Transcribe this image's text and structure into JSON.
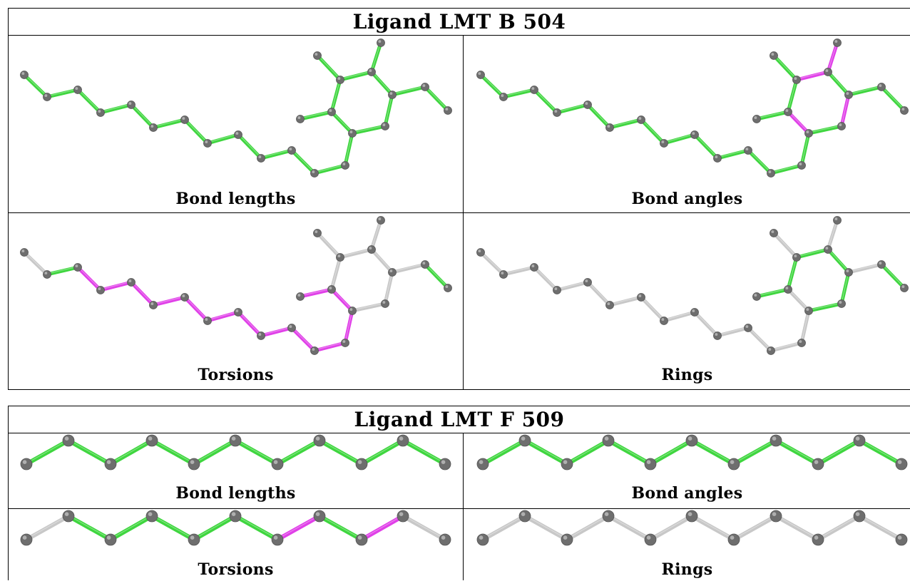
{
  "tables": [
    {
      "title": "Ligand LMT B 504",
      "panels": [
        {
          "caption": "Bond lengths"
        },
        {
          "caption": "Bond angles"
        },
        {
          "caption": "Torsions"
        },
        {
          "caption": "Rings"
        }
      ]
    },
    {
      "title": "Ligand LMT F 509",
      "panels": [
        {
          "caption": "Bond lengths"
        },
        {
          "caption": "Bond angles"
        },
        {
          "caption": "Torsions"
        },
        {
          "caption": "Rings"
        }
      ]
    }
  ],
  "colors": {
    "outlier": "#e040e8",
    "ok": "#3fd63f",
    "not_applicable": "#c8c8c8",
    "atom": "#6e6e6e"
  },
  "molecules": {
    "lmt_b_504": {
      "panel_bonds": {
        "bond_lengths": [
          "ok",
          "ok",
          "ok",
          "ok",
          "ok",
          "ok",
          "ok",
          "ok",
          "ok",
          "ok",
          "ok",
          "ok",
          "ok",
          "ok",
          "ok",
          "ok",
          "ok",
          "ok",
          "ok",
          "ok",
          "ok",
          "ok",
          "ok"
        ],
        "bond_angles": [
          "ok",
          "ok",
          "ok",
          "ok",
          "ok",
          "ok",
          "ok",
          "ok",
          "ok",
          "ok",
          "ok",
          "ok",
          "ok",
          "outlier",
          "ok",
          "outlier",
          "ok",
          "outlier",
          "ok",
          "ok",
          "ok",
          "outlier",
          "ok"
        ],
        "torsions": [
          "not_applicable",
          "ok",
          "outlier",
          "outlier",
          "outlier",
          "outlier",
          "outlier",
          "outlier",
          "outlier",
          "outlier",
          "outlier",
          "outlier",
          "outlier",
          "outlier",
          "not_applicable",
          "not_applicable",
          "not_applicable",
          "not_applicable",
          "not_applicable",
          "outlier",
          "not_applicable",
          "not_applicable",
          "not_applicable"
        ],
        "rings": [
          "not_applicable",
          "not_applicable",
          "not_applicable",
          "not_applicable",
          "not_applicable",
          "not_applicable",
          "not_applicable",
          "not_applicable",
          "not_applicable",
          "not_applicable",
          "not_applicable",
          "not_applicable",
          "not_applicable",
          "not_applicable",
          "ok",
          "ok",
          "ok",
          "ok",
          "ok",
          "ok",
          "not_applicable",
          "not_applicable",
          "not_applicable"
        ]
      }
    },
    "lmt_f_509": {
      "panel_bonds": {
        "bond_lengths": [
          "ok",
          "ok",
          "ok",
          "ok",
          "ok",
          "ok",
          "ok",
          "ok",
          "ok",
          "ok"
        ],
        "bond_angles": [
          "ok",
          "ok",
          "ok",
          "ok",
          "ok",
          "ok",
          "ok",
          "ok",
          "ok",
          "ok"
        ],
        "torsions": [
          "not_applicable",
          "ok",
          "ok",
          "ok",
          "ok",
          "ok",
          "outlier",
          "ok",
          "outlier",
          "not_applicable"
        ],
        "rings": [
          "not_applicable",
          "not_applicable",
          "not_applicable",
          "not_applicable",
          "not_applicable",
          "not_applicable",
          "not_applicable",
          "not_applicable",
          "not_applicable",
          "not_applicable"
        ]
      }
    }
  }
}
